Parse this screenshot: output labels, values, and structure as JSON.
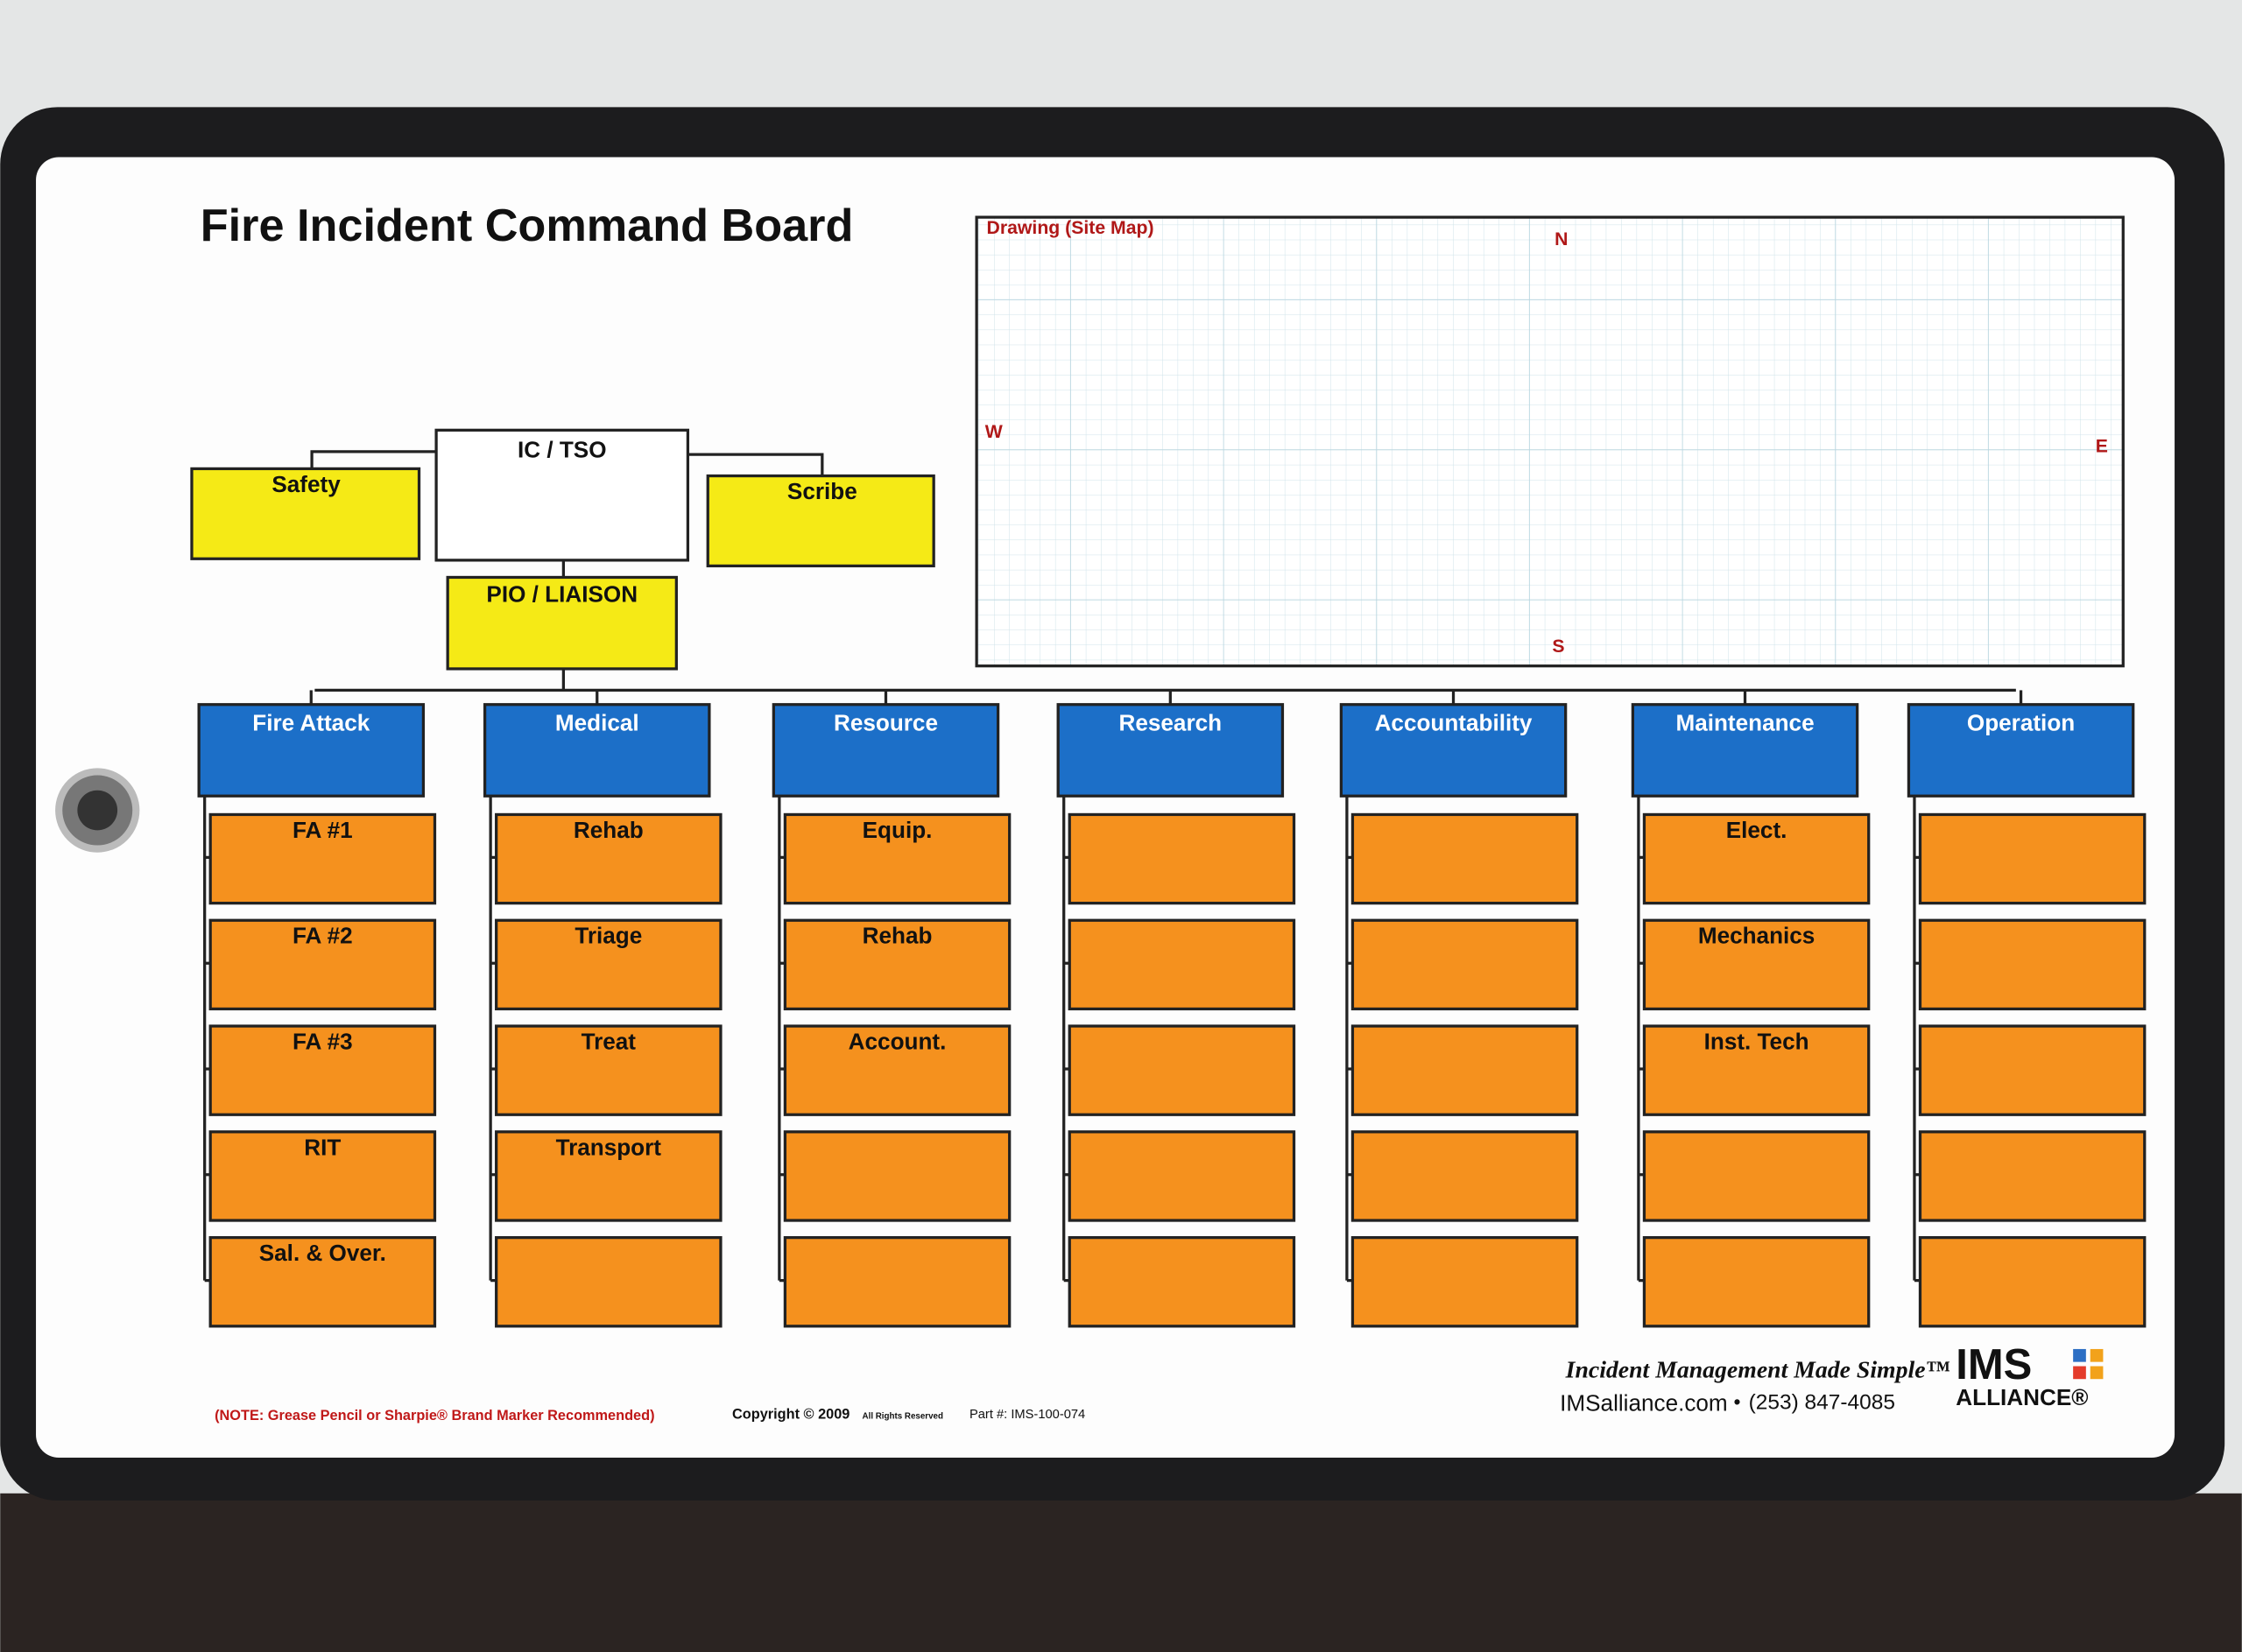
{
  "header": {
    "title": "Fire Incident Command Board"
  },
  "site_map": {
    "label": "Drawing (Site Map)",
    "north": "N",
    "west": "W",
    "east": "E",
    "south": "S"
  },
  "command": {
    "ic": "IC / TSO",
    "safety": "Safety",
    "scribe": "Scribe",
    "pio": "PIO / LIAISON"
  },
  "columns": [
    {
      "title": "Fire Attack",
      "items": [
        "FA #1",
        "FA #2",
        "FA #3",
        "RIT",
        "Sal. & Over."
      ]
    },
    {
      "title": "Medical",
      "items": [
        "Rehab",
        "Triage",
        "Treat",
        "Transport"
      ]
    },
    {
      "title": "Resource",
      "items": [
        "Equip.",
        "Rehab",
        "Account."
      ]
    },
    {
      "title": "Research",
      "items": []
    },
    {
      "title": "Accountability",
      "items": []
    },
    {
      "title": "Maintenance",
      "items": [
        "Elect.",
        "Mechanics",
        "Inst. Tech"
      ]
    },
    {
      "title": "Operation",
      "items": []
    }
  ],
  "footer": {
    "note": "(NOTE: Grease Pencil or Sharpie® Brand Marker Recommended)",
    "copyright": "Copyright © 2009",
    "rights": "All Rights Reserved",
    "part": "Part #: IMS-100-074",
    "tagline": "Incident Management Made Simple™",
    "website": "IMSalliance.com",
    "phone": "(253) 847-4085",
    "logo_top": "IMS",
    "logo_bottom": "ALLIANCE®"
  }
}
